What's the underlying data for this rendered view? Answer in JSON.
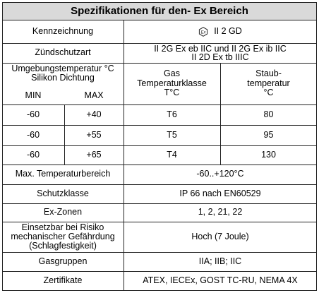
{
  "title": "Spezifikationen für den- Ex Bereich",
  "kennzeichnung": {
    "label": "Kennzeichnung",
    "value": "II 2 GD",
    "icon": "ex-hexagon-icon"
  },
  "zuendschutzart": {
    "label": "Zündschutzart",
    "line1": "II 2G Ex eb IIC und II 2G Ex ib IIC",
    "line2": "II 2D Ex tb IIIC"
  },
  "umgebung": {
    "label_line1": "Umgebungstemperatur °C",
    "label_line2": "Silikon Dichtung",
    "min_label": "MIN",
    "max_label": "MAX",
    "gas_header_line1": "Gas",
    "gas_header_line2": "Temperaturklasse",
    "gas_header_line3": "T°C",
    "staub_header_line1": "Staub-",
    "staub_header_line2": "temperatur",
    "staub_header_line3": "°C"
  },
  "temp_rows": [
    {
      "min": "-60",
      "max": "+40",
      "gas": "T6",
      "staub": "80"
    },
    {
      "min": "-60",
      "max": "+55",
      "gas": "T5",
      "staub": "95"
    },
    {
      "min": "-60",
      "max": "+65",
      "gas": "T4",
      "staub": "130"
    }
  ],
  "max_temp": {
    "label": "Max. Temperaturbereich",
    "value": "-60..+120°C"
  },
  "schutzklasse": {
    "label": "Schutzklasse",
    "value": "IP 66 nach EN60529"
  },
  "ex_zonen": {
    "label": "Ex-Zonen",
    "value": "1, 2, 21, 22"
  },
  "einsetzbar": {
    "label_line1": "Einsetzbar bei Risiko",
    "label_line2": "mechanischer Gefährdung",
    "label_line3": "(Schlagfestigkeit)",
    "value": "Hoch (7 Joule)"
  },
  "gasgruppen": {
    "label": "Gasgruppen",
    "value": "IIA; IIB; IIC"
  },
  "zertifikate": {
    "label": "Zertifikate",
    "value": "ATEX, IECEx, GOST TC-RU, NEMA 4X"
  }
}
